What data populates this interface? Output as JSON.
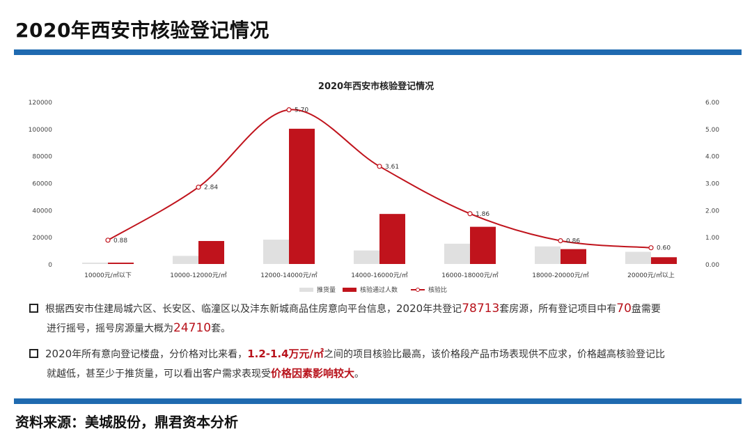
{
  "page": {
    "title": "2020年西安市核验登记情况"
  },
  "chart_data": {
    "type": "bar",
    "title": "2020年西安市核验登记情况",
    "categories": [
      "10000元/㎡以下",
      "10000-12000元/㎡",
      "12000-14000元/㎡",
      "14000-16000元/㎡",
      "16000-18000元/㎡",
      "18000-20000元/㎡",
      "20000元/㎡以上"
    ],
    "series": [
      {
        "name": "推货量",
        "kind": "bar",
        "axis": "left",
        "color": "#e0e0e0",
        "values": [
          1000,
          6000,
          18000,
          10000,
          15000,
          13000,
          9000
        ]
      },
      {
        "name": "核验通过人数",
        "kind": "bar",
        "axis": "left",
        "color": "#c0131c",
        "values": [
          1000,
          17000,
          100000,
          37000,
          27500,
          11000,
          5000
        ]
      },
      {
        "name": "核验比",
        "kind": "line",
        "axis": "right",
        "color": "#c0131c",
        "values": [
          0.88,
          2.84,
          5.7,
          3.61,
          1.86,
          0.86,
          0.6
        ],
        "labels": [
          "0.88",
          "2.84",
          "5.70",
          "3.61",
          "1.86",
          "0.86",
          "0.60"
        ]
      }
    ],
    "left_axis": {
      "ylim": [
        0,
        120000
      ],
      "ticks": [
        "0",
        "20000",
        "40000",
        "60000",
        "80000",
        "100000",
        "120000"
      ]
    },
    "right_axis": {
      "ylim": [
        0,
        6
      ],
      "ticks": [
        "0.00",
        "1.00",
        "2.00",
        "3.00",
        "4.00",
        "5.00",
        "6.00"
      ]
    },
    "legend_position": "bottom",
    "grid": false
  },
  "bullets": [
    {
      "line1": [
        "根据西安市住建局城六区、长安区、临潼区以及沣东新城商品住房意向平台信息，",
        "2020",
        "年共登记",
        "78713",
        "套房源，所有登记项目中有",
        "70",
        "盘需要"
      ],
      "line2": [
        "进行摇号，摇号房源量大概为",
        "24710",
        "套。"
      ]
    },
    {
      "line1": [
        "2020",
        "年所有意向登记楼盘，分价格对比来看，",
        "1.2-1.4万元/㎡",
        "之间的项目核验比最高，该价格段产品市场表现供不应求，价格越高核验登记比"
      ],
      "line2": [
        "就越低，甚至少于推货量，可以看出客户需求表现受",
        "价格因素影响较大",
        "。"
      ]
    }
  ],
  "source": "资料来源：美城股份，鼎君资本分析"
}
